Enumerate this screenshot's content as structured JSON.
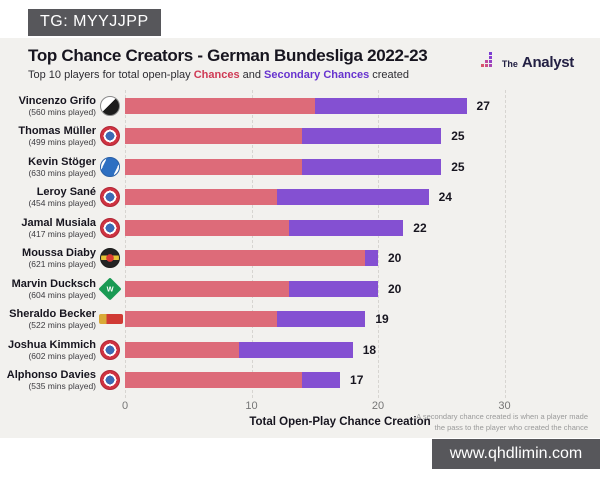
{
  "watermarks": {
    "top_left": "TG: MYYJJPP",
    "bottom_right": "www.qhdlimin.com"
  },
  "header": {
    "title": "Top Chance Creators - German Bundesliga 2022-23",
    "subtitle_prefix": "Top 10 players for total open-play ",
    "subtitle_chances": "Chances",
    "subtitle_and": " and ",
    "subtitle_secondary": "Secondary Chances",
    "subtitle_suffix": " created",
    "brand_the": "The",
    "brand_analyst": "Analyst"
  },
  "footnote": {
    "line1": "A secondary chance created is when a player made",
    "line2": "the pass to the player who created the chance"
  },
  "colors": {
    "chances_bar": "#dd6b79",
    "secondary_bar": "#8450d2",
    "chances_text": "#cf3a55",
    "secondary_text": "#6733cf",
    "card_background": "#f2f1ee",
    "watermark_background": "#57575b"
  },
  "chart_data": {
    "type": "bar",
    "orientation": "horizontal",
    "stacked": true,
    "title": "Top Chance Creators - German Bundesliga 2022-23",
    "xlabel": "Total Open-Play Chance Creation",
    "xlim": [
      0,
      34
    ],
    "xticks": [
      0,
      10,
      20,
      30
    ],
    "grid": "dashed-vertical",
    "legend": "inline-in-subtitle",
    "series": [
      {
        "name": "Chances",
        "color": "#dd6b79"
      },
      {
        "name": "Secondary Chances",
        "color": "#8450d2"
      }
    ],
    "players": [
      {
        "name": "Vincenzo Grifo",
        "mins": "(560 mins played)",
        "team": "freiburg",
        "chances": 15,
        "secondary_chances": 12,
        "total": 27
      },
      {
        "name": "Thomas Müller",
        "mins": "(499 mins played)",
        "team": "bayern",
        "chances": 14,
        "secondary_chances": 11,
        "total": 25
      },
      {
        "name": "Kevin Stöger",
        "mins": "(630 mins played)",
        "team": "bochum",
        "chances": 14,
        "secondary_chances": 11,
        "total": 25
      },
      {
        "name": "Leroy Sané",
        "mins": "(454 mins played)",
        "team": "bayern",
        "chances": 12,
        "secondary_chances": 12,
        "total": 24
      },
      {
        "name": "Jamal Musiala",
        "mins": "(417 mins played)",
        "team": "bayern",
        "chances": 13,
        "secondary_chances": 9,
        "total": 22
      },
      {
        "name": "Moussa Diaby",
        "mins": "(621 mins played)",
        "team": "leverkusen",
        "chances": 19,
        "secondary_chances": 1,
        "total": 20
      },
      {
        "name": "Marvin Ducksch",
        "mins": "(604 mins played)",
        "team": "bremen",
        "chances": 13,
        "secondary_chances": 7,
        "total": 20
      },
      {
        "name": "Sheraldo Becker",
        "mins": "(522 mins played)",
        "team": "union-berlin",
        "chances": 12,
        "secondary_chances": 7,
        "total": 19
      },
      {
        "name": "Joshua Kimmich",
        "mins": "(602 mins played)",
        "team": "bayern",
        "chances": 9,
        "secondary_chances": 9,
        "total": 18
      },
      {
        "name": "Alphonso Davies",
        "mins": "(535 mins played)",
        "team": "bayern",
        "chances": 14,
        "secondary_chances": 3,
        "total": 17
      }
    ]
  }
}
